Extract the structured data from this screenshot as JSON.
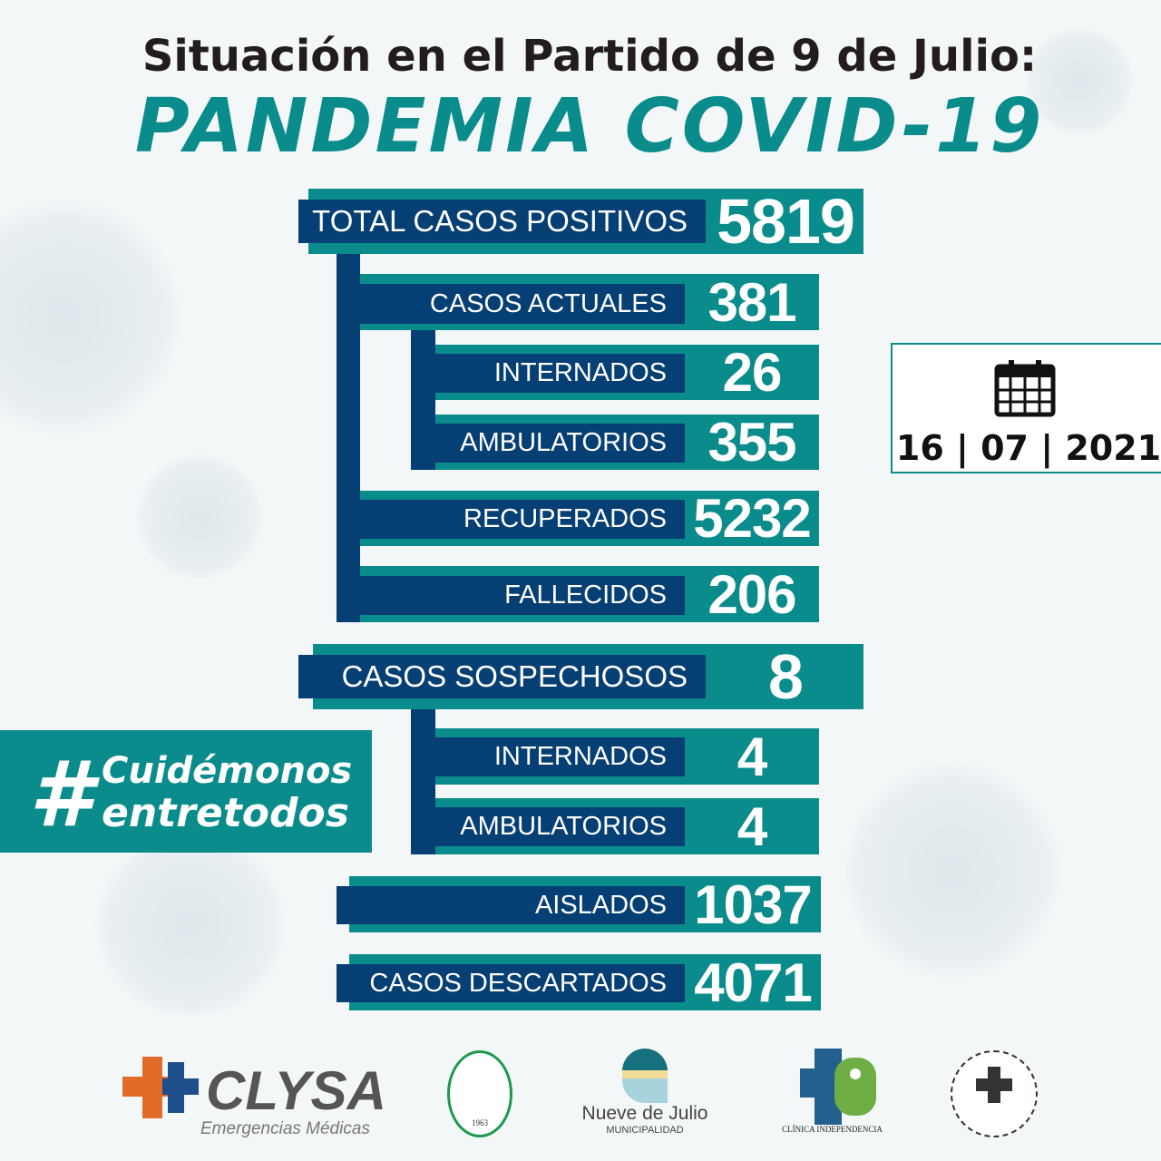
{
  "header": {
    "line1": "Situación en el Partido de 9 de Julio:",
    "line2": "PANDEMIA COVID-19"
  },
  "stats": {
    "total": {
      "label": "TOTAL CASOS POSITIVOS",
      "value": "5819"
    },
    "actuales": {
      "label": "CASOS ACTUALES",
      "value": "381"
    },
    "internados": {
      "label": "INTERNADOS",
      "value": "26"
    },
    "ambulatorios": {
      "label": "AMBULATORIOS",
      "value": "355"
    },
    "recuperados": {
      "label": "RECUPERADOS",
      "value": "5232"
    },
    "fallecidos": {
      "label": "FALLECIDOS",
      "value": "206"
    },
    "sospechosos": {
      "label": "CASOS SOSPECHOSOS",
      "value": "8"
    },
    "sosp_internados": {
      "label": "INTERNADOS",
      "value": "4"
    },
    "sosp_ambulatorios": {
      "label": "AMBULATORIOS",
      "value": "4"
    },
    "aislados": {
      "label": "AISLADOS",
      "value": "1037"
    },
    "descartados": {
      "label": "CASOS DESCARTADOS",
      "value": "4071"
    }
  },
  "date": {
    "icon": "calendar-icon",
    "day": "16",
    "month": "07",
    "year": "2021"
  },
  "hashtag": {
    "symbol": "#",
    "line1": "Cuidémonos",
    "line2": "entretodos"
  },
  "logos": {
    "clysa": "CLYSA",
    "clysa_sub": "Emergencias Médicas",
    "circulo": "1963",
    "municipio": "Nueve de Julio",
    "municipio_sub": "MUNICIPALIDAD",
    "clinica": "CLÍNICA INDEPENDENCIA"
  },
  "colors": {
    "teal": "#0a8c8c",
    "navy": "#053f73"
  }
}
